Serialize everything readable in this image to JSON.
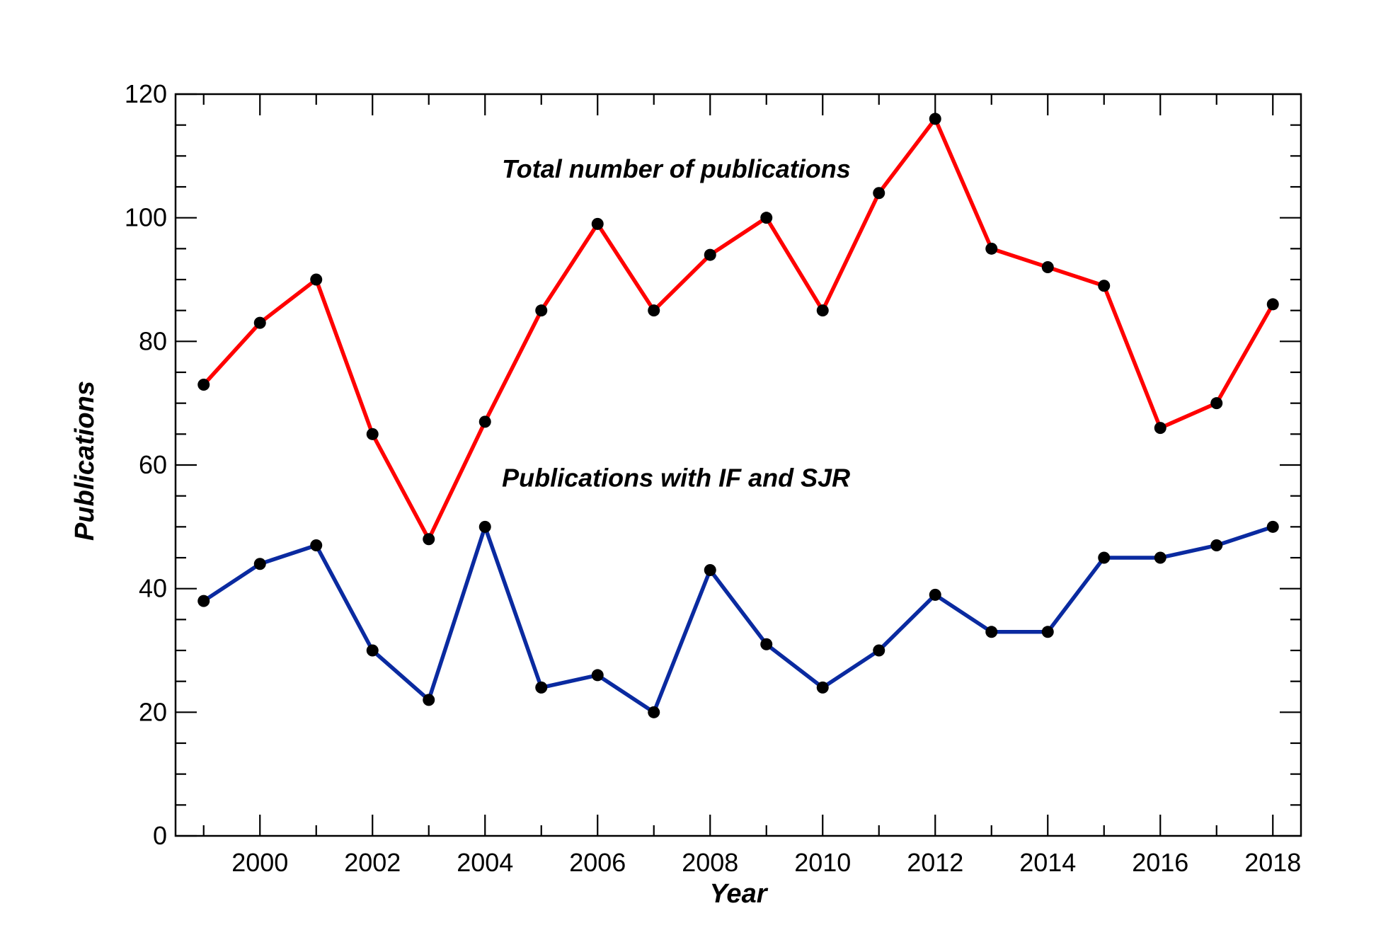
{
  "chart_data": {
    "type": "line",
    "title": "",
    "xlabel": "Year",
    "ylabel": "Publications",
    "x": [
      1999,
      2000,
      2001,
      2002,
      2003,
      2004,
      2005,
      2006,
      2007,
      2008,
      2009,
      2010,
      2011,
      2012,
      2013,
      2014,
      2015,
      2016,
      2017,
      2018
    ],
    "xlim": [
      1998.5,
      2018.5
    ],
    "ylim": [
      0,
      120
    ],
    "x_ticks": [
      2000,
      2002,
      2004,
      2006,
      2008,
      2010,
      2012,
      2014,
      2016,
      2018
    ],
    "y_ticks": [
      0,
      20,
      40,
      60,
      80,
      100,
      120
    ],
    "grid": false,
    "series": [
      {
        "name": "",
        "color": "#ff0000",
        "values": [
          73,
          83,
          90,
          65,
          48,
          67,
          85,
          99,
          85,
          94,
          100,
          85,
          104,
          116,
          95,
          92,
          89,
          66,
          70,
          86
        ]
      },
      {
        "name": "",
        "color": "#0a2aa0",
        "values": [
          38,
          44,
          47,
          30,
          22,
          50,
          24,
          26,
          20,
          43,
          31,
          24,
          30,
          39,
          33,
          33,
          45,
          45,
          47,
          50
        ]
      }
    ],
    "marker_color": "#000000",
    "annotations": [
      {
        "text": "Total number of publications",
        "x": 2004.3,
        "y": 106.5
      },
      {
        "text": "Publications with IF and SJR",
        "x": 2004.3,
        "y": 56.5
      }
    ]
  }
}
